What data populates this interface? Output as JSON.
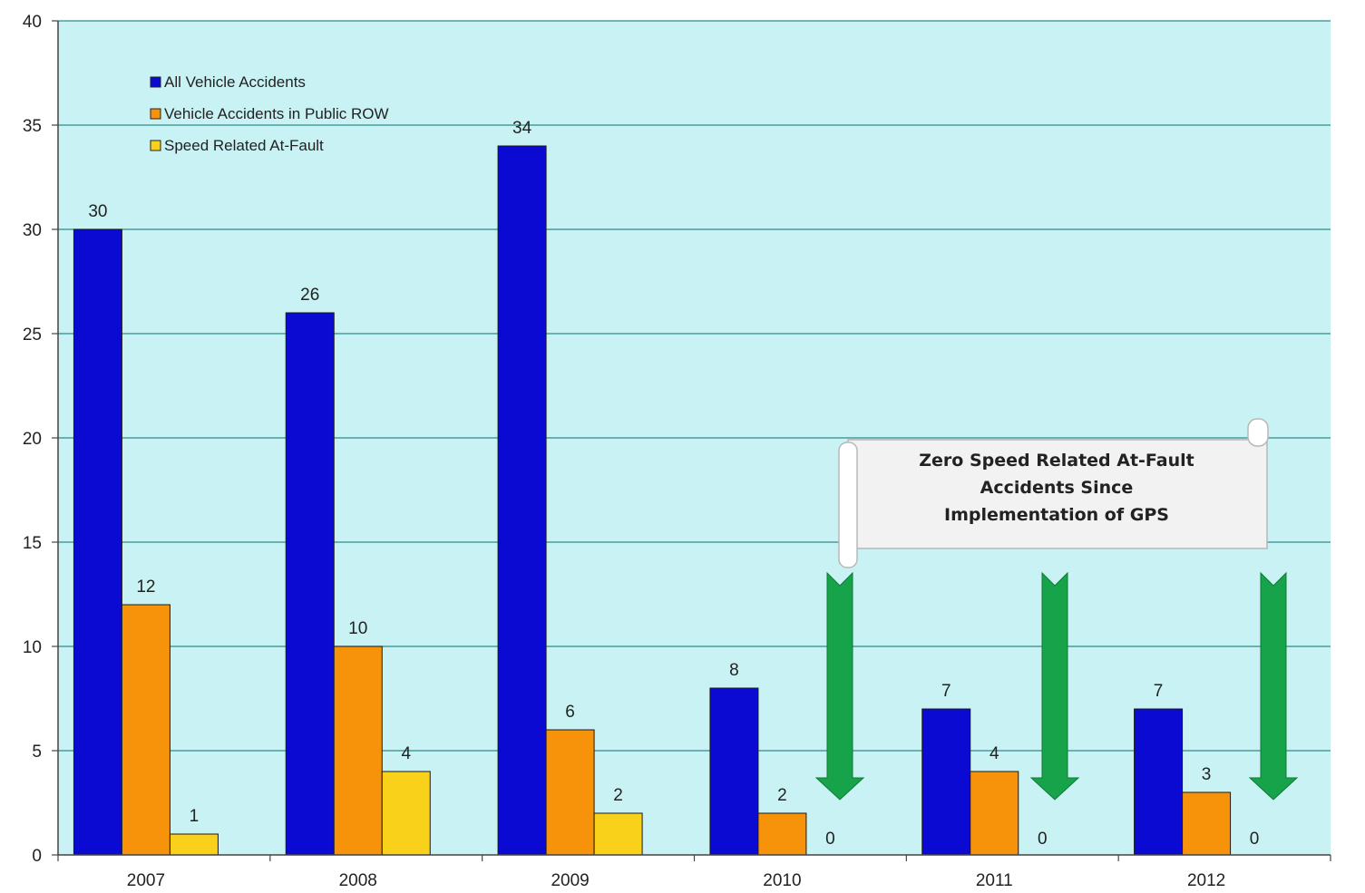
{
  "chart_data": {
    "type": "bar",
    "title": "",
    "xlabel": "",
    "ylabel": "",
    "ylim": [
      0,
      40
    ],
    "yticks": [
      0,
      5,
      10,
      15,
      20,
      25,
      30,
      35,
      40
    ],
    "grid": true,
    "legend_position": "top-left",
    "categories": [
      "2007",
      "2008",
      "2009",
      "2010",
      "2011",
      "2012"
    ],
    "series": [
      {
        "name": "All Vehicle Accidents",
        "color": "#0a0ad2",
        "values": [
          30,
          26,
          34,
          8,
          7,
          7
        ]
      },
      {
        "name": "Vehicle Accidents in Public ROW",
        "color": "#f7930a",
        "values": [
          12,
          10,
          6,
          2,
          4,
          3
        ]
      },
      {
        "name": "Speed Related At-Fault",
        "color": "#f9d01a",
        "values": [
          1,
          4,
          2,
          0,
          0,
          0
        ]
      }
    ],
    "annotation": {
      "lines": [
        "Zero Speed Related At-Fault",
        "Accidents Since",
        "Implementation of GPS"
      ],
      "arrow_color": "#16a34a",
      "arrow_categories": [
        "2010",
        "2011",
        "2012"
      ]
    },
    "plot_background": "#c8f2f3"
  }
}
